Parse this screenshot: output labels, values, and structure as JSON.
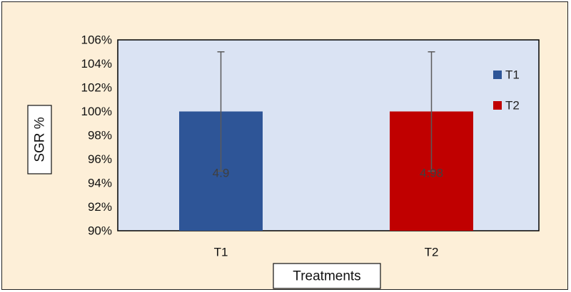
{
  "chart_data": {
    "type": "bar",
    "categories": [
      "T1",
      "T2"
    ],
    "values": [
      100,
      100
    ],
    "error_plus": [
      5,
      5
    ],
    "error_minus": [
      5,
      5
    ],
    "data_labels": [
      "4.9",
      "4.98"
    ],
    "colors": [
      "#2e5597",
      "#c00000"
    ],
    "xlabel": "Treatments",
    "ylabel": "SGR %",
    "ylim": [
      90,
      106
    ],
    "yticks": [
      90,
      92,
      94,
      96,
      98,
      100,
      102,
      104,
      106
    ],
    "tick_suffix": "%",
    "grid": false,
    "legend": {
      "placement": "right",
      "entries": [
        "T1",
        "T2"
      ]
    },
    "plot_background": "#dae3f3"
  }
}
